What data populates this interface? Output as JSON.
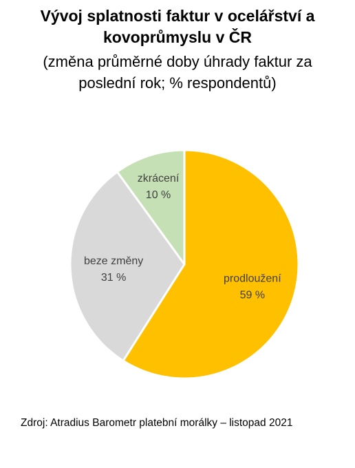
{
  "title_lines": [
    "Vývoj splatnosti faktur v ocelářství a",
    "kovoprůmyslu v ČR"
  ],
  "subtitle_lines": [
    "(změna průměrné doby úhrady faktur za",
    "poslední rok; % respondentů)"
  ],
  "source": "Zdroj: Atradius Barometr platební morálky – listopad 2021",
  "chart_data": {
    "type": "pie",
    "unit": "%",
    "slices": [
      {
        "label": "prodloužení",
        "value": 59,
        "value_label": "59 %",
        "color": "#FFC000"
      },
      {
        "label": "beze změny",
        "value": 31,
        "value_label": "31 %",
        "color": "#D9D9D9"
      },
      {
        "label": "zkrácení",
        "value": 10,
        "value_label": "10 %",
        "color": "#C5E0B4"
      }
    ]
  }
}
